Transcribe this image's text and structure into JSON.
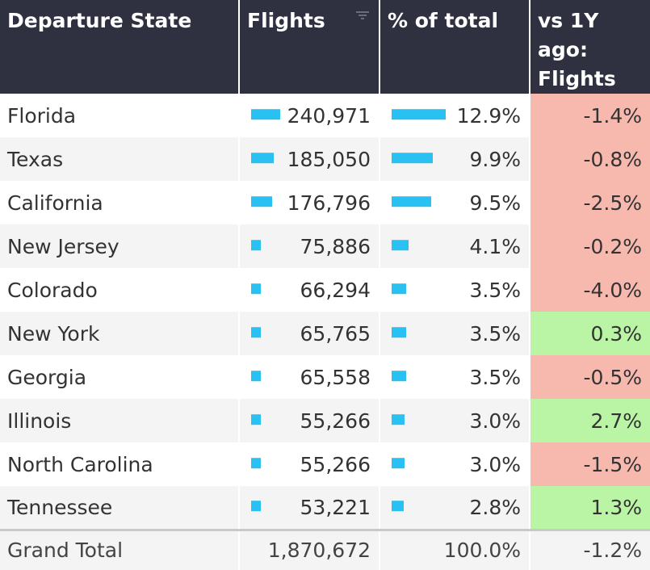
{
  "columns": {
    "state": "Departure State",
    "flights": "Flights",
    "pct": "% of total",
    "vs_line1": "vs 1Y ago:",
    "vs_line2": "Flights"
  },
  "icons": {
    "sort": "sort-filter-icon"
  },
  "colors": {
    "header_bg": "#2f3140",
    "bar": "#29c1f2",
    "negative_bg": "#f7b8ad",
    "positive_bg": "#b9f5a4"
  },
  "rows": [
    {
      "state": "Florida",
      "flights": "240,971",
      "flights_frac": 1.0,
      "pct": "12.9%",
      "pct_frac": 1.0,
      "change": "-1.4%",
      "sign": "neg"
    },
    {
      "state": "Texas",
      "flights": "185,050",
      "flights_frac": 0.768,
      "pct": "9.9%",
      "pct_frac": 0.767,
      "change": "-0.8%",
      "sign": "neg"
    },
    {
      "state": "California",
      "flights": "176,796",
      "flights_frac": 0.734,
      "pct": "9.5%",
      "pct_frac": 0.736,
      "change": "-2.5%",
      "sign": "neg"
    },
    {
      "state": "New Jersey",
      "flights": "75,886",
      "flights_frac": 0.315,
      "pct": "4.1%",
      "pct_frac": 0.318,
      "change": "-0.2%",
      "sign": "neg"
    },
    {
      "state": "Colorado",
      "flights": "66,294",
      "flights_frac": 0.275,
      "pct": "3.5%",
      "pct_frac": 0.271,
      "change": "-4.0%",
      "sign": "neg"
    },
    {
      "state": "New York",
      "flights": "65,765",
      "flights_frac": 0.273,
      "pct": "3.5%",
      "pct_frac": 0.271,
      "change": "0.3%",
      "sign": "pos"
    },
    {
      "state": "Georgia",
      "flights": "65,558",
      "flights_frac": 0.272,
      "pct": "3.5%",
      "pct_frac": 0.271,
      "change": "-0.5%",
      "sign": "neg"
    },
    {
      "state": "Illinois",
      "flights": "55,266",
      "flights_frac": 0.229,
      "pct": "3.0%",
      "pct_frac": 0.233,
      "change": "2.7%",
      "sign": "pos"
    },
    {
      "state": "North Carolina",
      "flights": "55,266",
      "flights_frac": 0.229,
      "pct": "3.0%",
      "pct_frac": 0.233,
      "change": "-1.5%",
      "sign": "neg"
    },
    {
      "state": "Tennessee",
      "flights": "53,221",
      "flights_frac": 0.221,
      "pct": "2.8%",
      "pct_frac": 0.217,
      "change": "1.3%",
      "sign": "pos"
    }
  ],
  "total": {
    "label": "Grand Total",
    "flights": "1,870,672",
    "pct": "100.0%",
    "change": "-1.2%"
  }
}
